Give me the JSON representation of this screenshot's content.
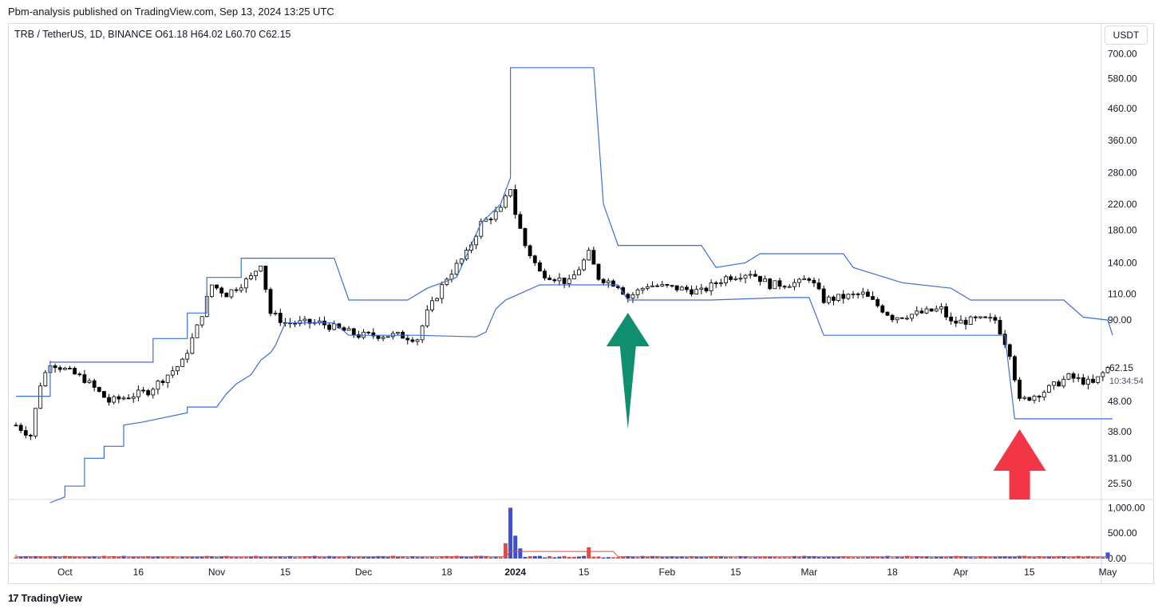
{
  "header": {
    "published_by": "Pbm-analysis published on TradingView.com, Sep 13, 2024 13:25 UTC",
    "symbol_line": "TRB / TetherUS, 1D, BINANCE  O61.18  H64.02  L60.70  C62.15",
    "currency_button": "USDT"
  },
  "footer": {
    "brand": "TradingView"
  },
  "chart_data": [
    {
      "type": "candlestick",
      "symbol": "TRB / TetherUS",
      "interval": "1D",
      "exchange": "BINANCE",
      "ohlc_last": {
        "open": 61.18,
        "high": 64.02,
        "low": 60.7,
        "close": 62.15
      },
      "y_scale": "log",
      "ylim": [
        22,
        800
      ],
      "y_ticks": [
        "700.00",
        "580.00",
        "460.00",
        "360.00",
        "280.00",
        "220.00",
        "180.00",
        "140.00",
        "110.00",
        "90.00",
        "62.15",
        "48.00",
        "38.00",
        "31.00",
        "25.50"
      ],
      "price_label": {
        "value": "62.15",
        "countdown": "10:34:54"
      },
      "x_ticks": [
        "Oct",
        "16",
        "Nov",
        "15",
        "Dec",
        "18",
        "2024",
        "15",
        "Feb",
        "15",
        "Mar",
        "18",
        "Apr",
        "15",
        "May"
      ],
      "x_range": [
        "2023-09-21",
        "2024-05-01"
      ],
      "candle_color_up": "#ffffff",
      "candle_color_down": "#000000",
      "keypoints": [
        [
          "2023-09-21",
          40
        ],
        [
          "2023-09-24",
          37
        ],
        [
          "2023-09-26",
          55
        ],
        [
          "2023-09-28",
          65
        ],
        [
          "2023-10-05",
          57
        ],
        [
          "2023-10-10",
          48
        ],
        [
          "2023-10-18",
          52
        ],
        [
          "2023-10-25",
          65
        ],
        [
          "2023-10-28",
          85
        ],
        [
          "2023-10-31",
          118
        ],
        [
          "2023-11-03",
          110
        ],
        [
          "2023-11-08",
          125
        ],
        [
          "2023-11-10",
          140
        ],
        [
          "2023-11-12",
          95
        ],
        [
          "2023-11-15",
          88
        ],
        [
          "2023-11-22",
          88
        ],
        [
          "2023-11-30",
          80
        ],
        [
          "2023-12-08",
          80
        ],
        [
          "2023-12-12",
          78
        ],
        [
          "2023-12-14",
          95
        ],
        [
          "2023-12-18",
          125
        ],
        [
          "2023-12-22",
          150
        ],
        [
          "2023-12-25",
          190
        ],
        [
          "2023-12-29",
          210
        ],
        [
          "2023-12-31",
          250
        ],
        [
          "2024-01-01",
          205
        ],
        [
          "2024-01-03",
          160
        ],
        [
          "2024-01-06",
          130
        ],
        [
          "2024-01-12",
          120
        ],
        [
          "2024-01-16",
          150
        ],
        [
          "2024-01-18",
          125
        ],
        [
          "2024-01-22",
          118
        ],
        [
          "2024-01-24",
          107
        ],
        [
          "2024-01-28",
          118
        ],
        [
          "2024-02-03",
          115
        ],
        [
          "2024-02-08",
          112
        ],
        [
          "2024-02-13",
          125
        ],
        [
          "2024-02-18",
          130
        ],
        [
          "2024-02-22",
          118
        ],
        [
          "2024-02-28",
          120
        ],
        [
          "2024-03-01",
          125
        ],
        [
          "2024-03-04",
          105
        ],
        [
          "2024-03-12",
          110
        ],
        [
          "2024-03-18",
          92
        ],
        [
          "2024-03-24",
          95
        ],
        [
          "2024-03-28",
          98
        ],
        [
          "2024-03-30",
          88
        ],
        [
          "2024-04-04",
          90
        ],
        [
          "2024-04-08",
          90
        ],
        [
          "2024-04-11",
          70
        ],
        [
          "2024-04-13",
          48
        ],
        [
          "2024-04-18",
          52
        ],
        [
          "2024-04-23",
          58
        ],
        [
          "2024-04-28",
          55
        ],
        [
          "2024-05-01",
          62.15
        ]
      ]
    },
    {
      "type": "line",
      "name": "Donchian upper band",
      "color": "#3b6fd6",
      "points": [
        [
          "2023-09-21",
          50
        ],
        [
          "2023-09-28",
          50
        ],
        [
          "2023-09-28",
          65
        ],
        [
          "2023-10-19",
          65
        ],
        [
          "2023-10-19",
          78
        ],
        [
          "2023-10-26",
          78
        ],
        [
          "2023-10-26",
          95
        ],
        [
          "2023-10-30",
          95
        ],
        [
          "2023-10-30",
          125
        ],
        [
          "2023-11-06",
          125
        ],
        [
          "2023-11-06",
          145
        ],
        [
          "2023-11-25",
          145
        ],
        [
          "2023-11-28",
          105
        ],
        [
          "2023-12-10",
          105
        ],
        [
          "2023-12-14",
          115
        ],
        [
          "2023-12-20",
          125
        ],
        [
          "2023-12-25",
          190
        ],
        [
          "2023-12-29",
          220
        ],
        [
          "2023-12-31",
          270
        ],
        [
          "2023-12-31",
          630
        ],
        [
          "2024-01-17",
          630
        ],
        [
          "2024-01-19",
          220
        ],
        [
          "2024-01-22",
          160
        ],
        [
          "2024-02-08",
          160
        ],
        [
          "2024-02-11",
          135
        ],
        [
          "2024-02-17",
          140
        ],
        [
          "2024-02-20",
          150
        ],
        [
          "2024-03-08",
          150
        ],
        [
          "2024-03-10",
          135
        ],
        [
          "2024-03-20",
          120
        ],
        [
          "2024-03-30",
          115
        ],
        [
          "2024-04-03",
          105
        ],
        [
          "2024-04-22",
          105
        ],
        [
          "2024-04-26",
          92
        ],
        [
          "2024-05-01",
          90
        ],
        [
          "2024-05-02",
          80
        ]
      ]
    },
    {
      "type": "line",
      "name": "Donchian lower band",
      "color": "#3b6fd6",
      "points": [
        [
          "2023-09-28",
          22
        ],
        [
          "2023-10-01",
          23
        ],
        [
          "2023-10-01",
          25
        ],
        [
          "2023-10-05",
          25
        ],
        [
          "2023-10-05",
          31
        ],
        [
          "2023-10-09",
          31
        ],
        [
          "2023-10-09",
          34
        ],
        [
          "2023-10-13",
          34
        ],
        [
          "2023-10-13",
          40
        ],
        [
          "2023-10-17",
          41
        ],
        [
          "2023-10-26",
          44
        ],
        [
          "2023-10-26",
          46
        ],
        [
          "2023-11-01",
          46
        ],
        [
          "2023-11-03",
          51
        ],
        [
          "2023-11-05",
          55
        ],
        [
          "2023-11-08",
          59
        ],
        [
          "2023-11-10",
          66
        ],
        [
          "2023-11-12",
          70
        ],
        [
          "2023-11-13",
          74
        ],
        [
          "2023-11-15",
          88
        ],
        [
          "2023-11-25",
          88
        ],
        [
          "2023-11-28",
          80
        ],
        [
          "2023-12-12",
          80
        ],
        [
          "2023-12-24",
          79
        ],
        [
          "2023-12-26",
          82
        ],
        [
          "2023-12-28",
          98
        ],
        [
          "2023-12-30",
          105
        ],
        [
          "2024-01-06",
          118
        ],
        [
          "2024-01-22",
          118
        ],
        [
          "2024-01-24",
          105
        ],
        [
          "2024-02-10",
          105
        ],
        [
          "2024-02-25",
          107
        ],
        [
          "2024-03-01",
          107
        ],
        [
          "2024-03-04",
          80
        ],
        [
          "2024-04-10",
          80
        ],
        [
          "2024-04-12",
          42
        ],
        [
          "2024-05-02",
          42
        ]
      ]
    },
    {
      "type": "bar",
      "name": "Volume",
      "ylim": [
        0,
        1100
      ],
      "y_ticks": [
        "1,000.00",
        "500.00",
        "0.00"
      ],
      "color_up": "#3b4fd6",
      "color_down": "#ef4444",
      "ma_color": "#ef4444",
      "spikes": [
        [
          "2023-12-30",
          300
        ],
        [
          "2023-12-31",
          1000
        ],
        [
          "2024-01-01",
          450
        ],
        [
          "2024-01-02",
          200
        ],
        [
          "2024-01-16",
          220
        ],
        [
          "2024-05-01",
          120
        ]
      ]
    }
  ],
  "annotations": [
    {
      "name": "green-up-arrow",
      "color": "#0f8f6f",
      "date": "2024-01-24",
      "direction": "up"
    },
    {
      "name": "red-up-arrow",
      "color": "#f23645",
      "date": "2024-04-13",
      "direction": "up"
    }
  ]
}
